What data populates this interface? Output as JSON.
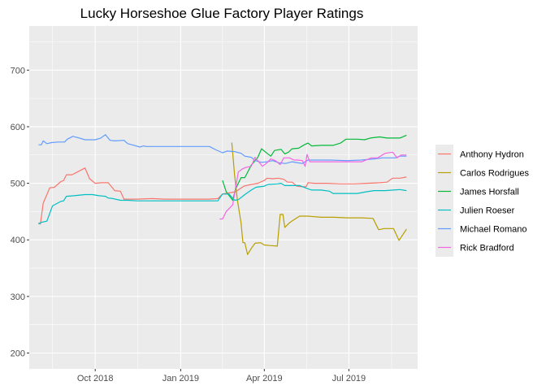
{
  "chart_data": {
    "type": "line",
    "title": "Lucky Horseshoe Glue Factory Player Ratings",
    "xlabel": "",
    "ylabel": "",
    "x_type": "date",
    "xlim": [
      "2018-07-22",
      "2019-09-13"
    ],
    "ylim": [
      172,
      778
    ],
    "y_ticks": [
      200,
      300,
      400,
      500,
      600,
      700
    ],
    "x_ticks": [
      {
        "date": "2018-10-01",
        "label": "Oct 2018"
      },
      {
        "date": "2019-01-01",
        "label": "Jan 2019"
      },
      {
        "date": "2019-04-01",
        "label": "Apr 2019"
      },
      {
        "date": "2019-07-01",
        "label": "Jul 2019"
      }
    ],
    "grid": true,
    "legend_position": "right",
    "series": [
      {
        "name": "Anthony Hydron",
        "color": "#F8766D",
        "points": [
          [
            "2018-08-01",
            430
          ],
          [
            "2018-08-03",
            428
          ],
          [
            "2018-08-06",
            465
          ],
          [
            "2018-08-10",
            480
          ],
          [
            "2018-08-13",
            492
          ],
          [
            "2018-08-18",
            493
          ],
          [
            "2018-08-25",
            503
          ],
          [
            "2018-08-28",
            505
          ],
          [
            "2018-08-31",
            515
          ],
          [
            "2018-09-06",
            515
          ],
          [
            "2018-09-14",
            522
          ],
          [
            "2018-09-20",
            527
          ],
          [
            "2018-09-25",
            508
          ],
          [
            "2018-10-01",
            500
          ],
          [
            "2018-10-08",
            501
          ],
          [
            "2018-10-15",
            501
          ],
          [
            "2018-10-22",
            487
          ],
          [
            "2018-10-28",
            486
          ],
          [
            "2018-11-01",
            472
          ],
          [
            "2018-11-15",
            472
          ],
          [
            "2018-12-01",
            473
          ],
          [
            "2018-12-15",
            472
          ],
          [
            "2019-01-01",
            472
          ],
          [
            "2019-01-15",
            472
          ],
          [
            "2019-02-01",
            472
          ],
          [
            "2019-02-10",
            473
          ],
          [
            "2019-02-15",
            481
          ],
          [
            "2019-02-22",
            483
          ],
          [
            "2019-03-01",
            485
          ],
          [
            "2019-03-10",
            495
          ],
          [
            "2019-03-18",
            498
          ],
          [
            "2019-03-25",
            500
          ],
          [
            "2019-04-01",
            505
          ],
          [
            "2019-04-04",
            509
          ],
          [
            "2019-04-10",
            508
          ],
          [
            "2019-04-16",
            509
          ],
          [
            "2019-04-22",
            507
          ],
          [
            "2019-04-26",
            502
          ],
          [
            "2019-05-01",
            502
          ],
          [
            "2019-05-06",
            495
          ],
          [
            "2019-05-12",
            494
          ],
          [
            "2019-05-16",
            494
          ],
          [
            "2019-05-18",
            501
          ],
          [
            "2019-05-25",
            500
          ],
          [
            "2019-06-08",
            500
          ],
          [
            "2019-06-22",
            499
          ],
          [
            "2019-07-07",
            499
          ],
          [
            "2019-07-20",
            500
          ],
          [
            "2019-08-03",
            501
          ],
          [
            "2019-08-11",
            502
          ],
          [
            "2019-08-17",
            509
          ],
          [
            "2019-08-25",
            509
          ],
          [
            "2019-09-01",
            511
          ]
        ]
      },
      {
        "name": "Carlos Rodrigues",
        "color": "#B79F00",
        "points": [
          [
            "2019-02-25",
            572
          ],
          [
            "2019-02-28",
            515
          ],
          [
            "2019-03-03",
            470
          ],
          [
            "2019-03-07",
            430
          ],
          [
            "2019-03-09",
            395
          ],
          [
            "2019-03-11",
            395
          ],
          [
            "2019-03-14",
            374
          ],
          [
            "2019-03-18",
            385
          ],
          [
            "2019-03-22",
            394
          ],
          [
            "2019-03-28",
            395
          ],
          [
            "2019-04-01",
            391
          ],
          [
            "2019-04-07",
            390
          ],
          [
            "2019-04-15",
            389
          ],
          [
            "2019-04-18",
            445
          ],
          [
            "2019-04-21",
            445
          ],
          [
            "2019-04-23",
            422
          ],
          [
            "2019-04-28",
            430
          ],
          [
            "2019-05-04",
            437
          ],
          [
            "2019-05-09",
            442
          ],
          [
            "2019-05-18",
            442
          ],
          [
            "2019-06-01",
            440
          ],
          [
            "2019-06-15",
            440
          ],
          [
            "2019-06-29",
            439
          ],
          [
            "2019-07-15",
            439
          ],
          [
            "2019-07-27",
            438
          ],
          [
            "2019-08-02",
            418
          ],
          [
            "2019-08-08",
            420
          ],
          [
            "2019-08-18",
            420
          ],
          [
            "2019-08-24",
            399
          ],
          [
            "2019-09-01",
            419
          ]
        ]
      },
      {
        "name": "James Horsfall",
        "color": "#00BA38",
        "points": [
          [
            "2019-02-15",
            505
          ],
          [
            "2019-02-19",
            485
          ],
          [
            "2019-02-26",
            470
          ],
          [
            "2019-03-01",
            490
          ],
          [
            "2019-03-07",
            510
          ],
          [
            "2019-03-11",
            510
          ],
          [
            "2019-03-18",
            532
          ],
          [
            "2019-03-25",
            546
          ],
          [
            "2019-03-29",
            561
          ],
          [
            "2019-04-04",
            553
          ],
          [
            "2019-04-08",
            548
          ],
          [
            "2019-04-12",
            558
          ],
          [
            "2019-04-19",
            560
          ],
          [
            "2019-04-23",
            552
          ],
          [
            "2019-04-27",
            555
          ],
          [
            "2019-05-01",
            561
          ],
          [
            "2019-05-08",
            562
          ],
          [
            "2019-05-14",
            568
          ],
          [
            "2019-05-18",
            571
          ],
          [
            "2019-05-22",
            566
          ],
          [
            "2019-06-01",
            567
          ],
          [
            "2019-06-14",
            567
          ],
          [
            "2019-06-22",
            571
          ],
          [
            "2019-06-28",
            578
          ],
          [
            "2019-07-10",
            578
          ],
          [
            "2019-07-18",
            577
          ],
          [
            "2019-07-24",
            580
          ],
          [
            "2019-08-03",
            582
          ],
          [
            "2019-08-11",
            580
          ],
          [
            "2019-08-18",
            580
          ],
          [
            "2019-08-25",
            580
          ],
          [
            "2019-09-01",
            585
          ]
        ]
      },
      {
        "name": "Julien Roeser",
        "color": "#00BFC4",
        "points": [
          [
            "2018-08-01",
            428
          ],
          [
            "2018-08-04",
            431
          ],
          [
            "2018-08-10",
            433
          ],
          [
            "2018-08-16",
            460
          ],
          [
            "2018-08-25",
            468
          ],
          [
            "2018-08-28",
            469
          ],
          [
            "2018-08-31",
            477
          ],
          [
            "2018-09-08",
            478
          ],
          [
            "2018-09-20",
            480
          ],
          [
            "2018-09-28",
            480
          ],
          [
            "2018-10-05",
            478
          ],
          [
            "2018-10-12",
            477
          ],
          [
            "2018-10-15",
            474
          ],
          [
            "2018-10-20",
            473
          ],
          [
            "2018-10-28",
            470
          ],
          [
            "2018-11-05",
            470
          ],
          [
            "2018-11-15",
            469
          ],
          [
            "2018-12-01",
            469
          ],
          [
            "2018-12-20",
            469
          ],
          [
            "2019-01-10",
            469
          ],
          [
            "2019-02-01",
            469
          ],
          [
            "2019-02-10",
            469
          ],
          [
            "2019-02-15",
            481
          ],
          [
            "2019-02-22",
            481
          ],
          [
            "2019-02-28",
            470
          ],
          [
            "2019-03-04",
            471
          ],
          [
            "2019-03-11",
            480
          ],
          [
            "2019-03-18",
            488
          ],
          [
            "2019-03-23",
            493
          ],
          [
            "2019-04-01",
            495
          ],
          [
            "2019-04-05",
            498
          ],
          [
            "2019-04-15",
            499
          ],
          [
            "2019-04-19",
            500
          ],
          [
            "2019-04-23",
            496
          ],
          [
            "2019-05-01",
            496
          ],
          [
            "2019-05-09",
            496
          ],
          [
            "2019-05-17",
            491
          ],
          [
            "2019-05-22",
            488
          ],
          [
            "2019-06-01",
            488
          ],
          [
            "2019-06-10",
            486
          ],
          [
            "2019-06-14",
            482
          ],
          [
            "2019-06-25",
            482
          ],
          [
            "2019-07-10",
            482
          ],
          [
            "2019-07-20",
            485
          ],
          [
            "2019-07-28",
            487
          ],
          [
            "2019-08-09",
            487
          ],
          [
            "2019-08-18",
            488
          ],
          [
            "2019-08-25",
            489
          ],
          [
            "2019-09-01",
            487
          ]
        ]
      },
      {
        "name": "Michael Romano",
        "color": "#619CFF",
        "points": [
          [
            "2018-08-01",
            568
          ],
          [
            "2018-08-04",
            568
          ],
          [
            "2018-08-06",
            575
          ],
          [
            "2018-08-10",
            570
          ],
          [
            "2018-08-15",
            572
          ],
          [
            "2018-08-22",
            573
          ],
          [
            "2018-08-29",
            573
          ],
          [
            "2018-09-01",
            578
          ],
          [
            "2018-09-07",
            583
          ],
          [
            "2018-09-14",
            580
          ],
          [
            "2018-09-20",
            577
          ],
          [
            "2018-10-01",
            577
          ],
          [
            "2018-10-07",
            580
          ],
          [
            "2018-10-12",
            586
          ],
          [
            "2018-10-17",
            576
          ],
          [
            "2018-10-22",
            575
          ],
          [
            "2018-11-01",
            576
          ],
          [
            "2018-11-05",
            570
          ],
          [
            "2018-11-12",
            567
          ],
          [
            "2018-11-18",
            564
          ],
          [
            "2018-11-22",
            566
          ],
          [
            "2018-11-25",
            565
          ],
          [
            "2018-12-01",
            565
          ],
          [
            "2018-12-15",
            565
          ],
          [
            "2019-01-01",
            565
          ],
          [
            "2019-01-15",
            565
          ],
          [
            "2019-02-01",
            565
          ],
          [
            "2019-02-08",
            559
          ],
          [
            "2019-02-15",
            554
          ],
          [
            "2019-02-20",
            557
          ],
          [
            "2019-02-28",
            556
          ],
          [
            "2019-03-07",
            553
          ],
          [
            "2019-03-11",
            548
          ],
          [
            "2019-03-18",
            546
          ],
          [
            "2019-03-22",
            540
          ],
          [
            "2019-03-29",
            537
          ],
          [
            "2019-04-04",
            538
          ],
          [
            "2019-04-10",
            540
          ],
          [
            "2019-04-17",
            536
          ],
          [
            "2019-04-24",
            535
          ],
          [
            "2019-05-01",
            538
          ],
          [
            "2019-05-08",
            536
          ],
          [
            "2019-05-12",
            535
          ],
          [
            "2019-05-18",
            541
          ],
          [
            "2019-05-25",
            541
          ],
          [
            "2019-06-10",
            541
          ],
          [
            "2019-06-29",
            540
          ],
          [
            "2019-07-14",
            541
          ],
          [
            "2019-07-28",
            543
          ],
          [
            "2019-08-06",
            545
          ],
          [
            "2019-08-13",
            545
          ],
          [
            "2019-08-20",
            545
          ],
          [
            "2019-08-25",
            548
          ],
          [
            "2019-09-01",
            548
          ]
        ]
      },
      {
        "name": "Rick Bradford",
        "color": "#F564E3",
        "points": [
          [
            "2019-02-12",
            437
          ],
          [
            "2019-02-15",
            437
          ],
          [
            "2019-02-19",
            450
          ],
          [
            "2019-02-26",
            462
          ],
          [
            "2019-03-04",
            520
          ],
          [
            "2019-03-08",
            525
          ],
          [
            "2019-03-12",
            528
          ],
          [
            "2019-03-18",
            530
          ],
          [
            "2019-03-22",
            546
          ],
          [
            "2019-03-26",
            538
          ],
          [
            "2019-03-30",
            530
          ],
          [
            "2019-04-03",
            535
          ],
          [
            "2019-04-08",
            543
          ],
          [
            "2019-04-13",
            540
          ],
          [
            "2019-04-18",
            533
          ],
          [
            "2019-04-22",
            545
          ],
          [
            "2019-04-28",
            545
          ],
          [
            "2019-05-03",
            541
          ],
          [
            "2019-05-07",
            541
          ],
          [
            "2019-05-12",
            540
          ],
          [
            "2019-05-15",
            530
          ],
          [
            "2019-05-17",
            551
          ],
          [
            "2019-05-20",
            538
          ],
          [
            "2019-06-01",
            538
          ],
          [
            "2019-06-15",
            538
          ],
          [
            "2019-07-01",
            538
          ],
          [
            "2019-07-15",
            538
          ],
          [
            "2019-07-25",
            545
          ],
          [
            "2019-08-01",
            545
          ],
          [
            "2019-08-09",
            553
          ],
          [
            "2019-08-17",
            555
          ],
          [
            "2019-08-22",
            545
          ],
          [
            "2019-08-26",
            550
          ],
          [
            "2019-09-01",
            550
          ]
        ]
      }
    ]
  }
}
